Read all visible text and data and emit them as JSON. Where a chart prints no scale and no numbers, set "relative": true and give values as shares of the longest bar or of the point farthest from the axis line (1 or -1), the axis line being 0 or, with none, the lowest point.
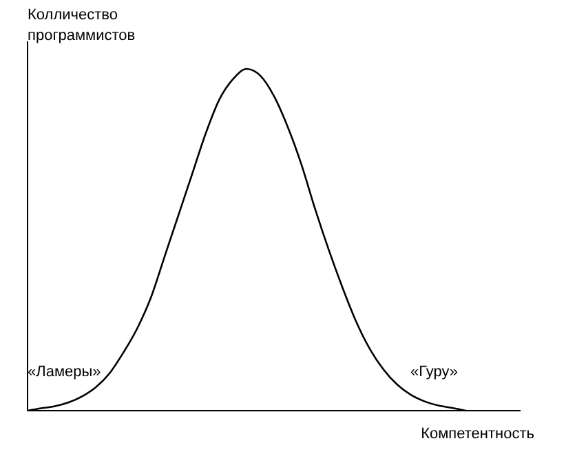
{
  "chart_data": {
    "type": "line",
    "relative": true,
    "ylabel": "Колличество программистов",
    "xlabel": "Компетентность",
    "annotations": [
      "«Ламеры»",
      "«Гуру»"
    ],
    "categories": [
      null,
      null,
      null,
      null,
      null,
      null,
      null,
      null,
      null,
      null,
      null,
      null,
      null,
      null,
      null,
      null,
      null,
      null,
      null,
      null,
      null,
      null,
      null,
      null,
      null,
      null,
      null,
      null,
      null,
      null,
      null,
      null,
      null,
      null,
      null,
      null,
      null
    ],
    "series": [
      {
        "color": "#000000",
        "values": [
          0,
          0.007,
          0.013,
          0.024,
          0.042,
          0.069,
          0.11,
          0.17,
          0.24,
          0.33,
          0.45,
          0.57,
          0.69,
          0.81,
          0.91,
          0.97,
          1,
          0.98,
          0.92,
          0.83,
          0.72,
          0.59,
          0.47,
          0.36,
          0.26,
          0.18,
          0.12,
          0.076,
          0.046,
          0.027,
          0.015,
          0.008,
          0,
          null,
          null,
          null,
          null
        ]
      }
    ],
    "marker": "none",
    "line_style": "solid"
  }
}
